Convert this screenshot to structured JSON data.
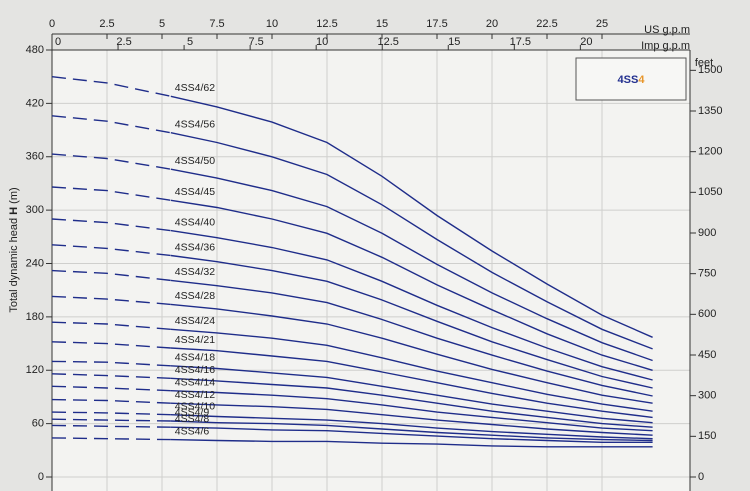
{
  "chart_data": {
    "type": "line",
    "title": [
      "4SS",
      "4"
    ],
    "title_colors": [
      "#23308f",
      "#e8962a"
    ],
    "x_label": "US g.p.m",
    "x2_label": "Imp g.p.m",
    "y_label": [
      "Total dynamic head ",
      "H",
      " (m)"
    ],
    "y2_label": "feet",
    "xlim": [
      0,
      29
    ],
    "xticks": [
      0,
      2.5,
      5,
      7.5,
      10,
      12.5,
      15,
      17.5,
      20,
      22.5,
      25
    ],
    "x2lim": [
      0,
      24.15
    ],
    "x2ticks": [
      0,
      2.5,
      5,
      7.5,
      10,
      12.5,
      15,
      17.5,
      20
    ],
    "ylim": [
      0,
      480
    ],
    "yticks": [
      0,
      60,
      120,
      180,
      240,
      300,
      360,
      420,
      480
    ],
    "y2lim": [
      0,
      1575
    ],
    "y2ticks": [
      0,
      150,
      300,
      450,
      600,
      750,
      900,
      1050,
      1200,
      1350,
      1500
    ],
    "grid": true,
    "color": "#1f2d8a",
    "x": [
      0,
      2.5,
      5.4,
      7.5,
      10,
      12.5,
      15,
      17.5,
      20,
      22.5,
      25,
      27.3
    ],
    "series": [
      {
        "name": "4SS4/62",
        "values": [
          450,
          443,
          428,
          416,
          399,
          376,
          338,
          294,
          254,
          217,
          182,
          157
        ]
      },
      {
        "name": "4SS4/56",
        "values": [
          406,
          400,
          387,
          376,
          360,
          340,
          306,
          267,
          230,
          197,
          166,
          144
        ]
      },
      {
        "name": "4SS4/50",
        "values": [
          363,
          358,
          346,
          336,
          322,
          304,
          274,
          239,
          207,
          178,
          151,
          131
        ]
      },
      {
        "name": "4SS4/45",
        "values": [
          326,
          322,
          311,
          303,
          290,
          274,
          247,
          216,
          188,
          161,
          137,
          120
        ]
      },
      {
        "name": "4SS4/40",
        "values": [
          290,
          286,
          277,
          269,
          258,
          244,
          220,
          193,
          168,
          145,
          124,
          109
        ]
      },
      {
        "name": "4SS4/36",
        "values": [
          261,
          257,
          249,
          242,
          232,
          220,
          199,
          175,
          152,
          132,
          113,
          100
        ]
      },
      {
        "name": "4SS4/32",
        "values": [
          232,
          229,
          221,
          215,
          207,
          196,
          177,
          156,
          137,
          119,
          103,
          91
        ]
      },
      {
        "name": "4SS4/28",
        "values": [
          203,
          200,
          194,
          189,
          181,
          172,
          156,
          138,
          121,
          106,
          92,
          83
        ]
      },
      {
        "name": "4SS4/24",
        "values": [
          174,
          172,
          166,
          162,
          156,
          148,
          134,
          119,
          106,
          93,
          82,
          74
        ]
      },
      {
        "name": "4SS4/21",
        "values": [
          152,
          150,
          145,
          142,
          136,
          130,
          118,
          106,
          94,
          83,
          74,
          67
        ]
      },
      {
        "name": "4SS4/18",
        "values": [
          130,
          129,
          125,
          122,
          117,
          112,
          102,
          92,
          82,
          74,
          66,
          61
        ]
      },
      {
        "name": "4SS4/16",
        "values": [
          116,
          114,
          111,
          108,
          104,
          100,
          92,
          83,
          74,
          67,
          60,
          56
        ]
      },
      {
        "name": "4SS4/14",
        "values": [
          102,
          100,
          97,
          95,
          92,
          88,
          81,
          73,
          67,
          61,
          55,
          52
        ]
      },
      {
        "name": "4SS4/12",
        "values": [
          87,
          86,
          83,
          81,
          79,
          76,
          70,
          64,
          59,
          54,
          50,
          47
        ]
      },
      {
        "name": "4SS4/10",
        "values": [
          73,
          72,
          70,
          68,
          66,
          64,
          60,
          55,
          51,
          48,
          45,
          43
        ]
      },
      {
        "name": "4SS4/9",
        "values": [
          65,
          64,
          63,
          61,
          60,
          58,
          54,
          50,
          47,
          44,
          42,
          41
        ]
      },
      {
        "name": "4SS4/8",
        "values": [
          58,
          57,
          56,
          55,
          53,
          52,
          49,
          46,
          43,
          41,
          39,
          39
        ]
      },
      {
        "name": "4SS4/6",
        "values": [
          44,
          43,
          42,
          41,
          40,
          40,
          38,
          37,
          35,
          34,
          34,
          34
        ]
      }
    ]
  }
}
